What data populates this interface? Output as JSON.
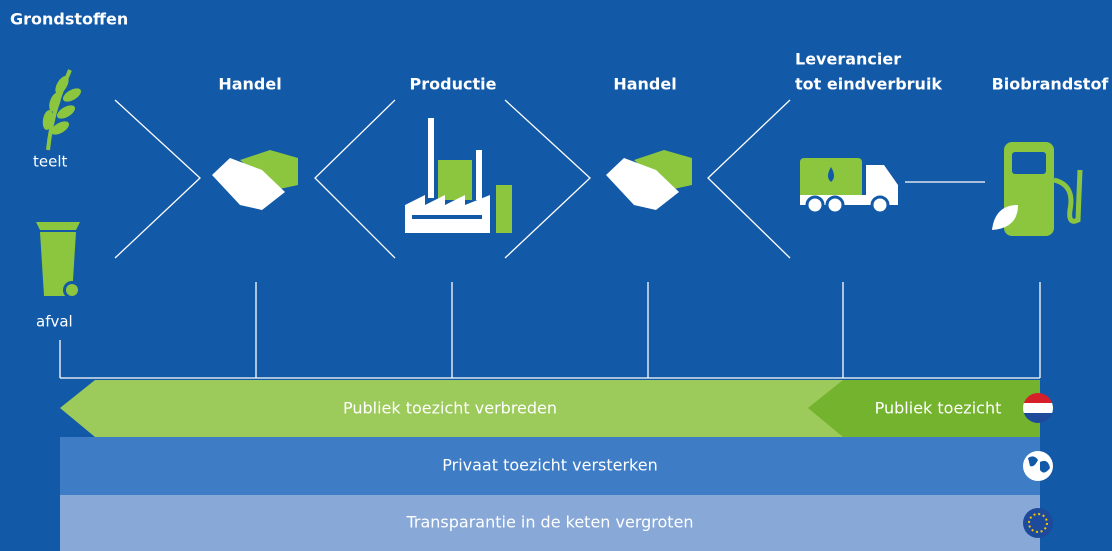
{
  "title": "Grondstoffen",
  "sources": [
    "teelt",
    "afval"
  ],
  "stages": [
    "Handel",
    "Productie",
    "Handel",
    "Leverancier",
    "tot eindverbruik",
    "Biobrandstof"
  ],
  "bars": [
    "Publiek toezicht verbreden",
    "Publiek toezicht",
    "Privaat toezicht versterken",
    "Transparantie in de keten vergroten"
  ]
}
